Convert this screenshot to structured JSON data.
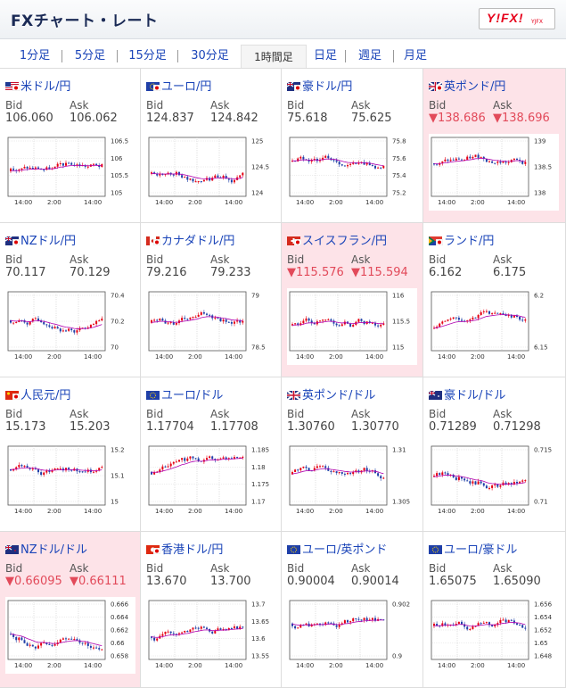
{
  "header": {
    "title": "FXチャート・レート",
    "logo_text": "Y!FX!",
    "logo_sub": "YJFX"
  },
  "tabs": [
    {
      "label": "1分足",
      "active": false
    },
    {
      "label": "5分足",
      "active": false
    },
    {
      "label": "15分足",
      "active": false
    },
    {
      "label": "30分足",
      "active": false
    },
    {
      "label": "1時間足",
      "active": true
    },
    {
      "label": "日足",
      "active": false
    },
    {
      "label": "週足",
      "active": false
    },
    {
      "label": "月足",
      "active": false
    }
  ],
  "labels": {
    "bid": "Bid",
    "ask": "Ask"
  },
  "pairs": [
    {
      "name": "米ドル/円",
      "bid": "106.060",
      "ask": "106.062",
      "down": false,
      "flag": "us",
      "ticks": [
        "106.5",
        "106",
        "105.5",
        "105"
      ],
      "xticks": [
        "14:00",
        "2:00",
        "14:00"
      ]
    },
    {
      "name": "ユーロ/円",
      "bid": "124.837",
      "ask": "124.842",
      "down": false,
      "flag": "eu",
      "ticks": [
        "125",
        "124.5",
        "124"
      ],
      "xticks": [
        "14:00",
        "2:00",
        "14:00"
      ]
    },
    {
      "name": "豪ドル/円",
      "bid": "75.618",
      "ask": "75.625",
      "down": false,
      "flag": "au",
      "ticks": [
        "75.8",
        "75.6",
        "75.4",
        "75.2"
      ],
      "xticks": [
        "14:00",
        "2:00",
        "14:00"
      ]
    },
    {
      "name": "英ポンド/円",
      "bid": "▼138.686",
      "ask": "▼138.696",
      "down": true,
      "flag": "gb",
      "ticks": [
        "139",
        "138.5",
        "138"
      ],
      "xticks": [
        "14:00",
        "2:00",
        "14:00"
      ]
    },
    {
      "name": "NZドル/円",
      "bid": "70.117",
      "ask": "70.129",
      "down": false,
      "flag": "nz",
      "ticks": [
        "70.4",
        "70.2",
        "70"
      ],
      "xticks": [
        "14:00",
        "2:00",
        "14:00"
      ]
    },
    {
      "name": "カナダドル/円",
      "bid": "79.216",
      "ask": "79.233",
      "down": false,
      "flag": "ca",
      "ticks": [
        "79",
        "78.5"
      ],
      "xticks": [
        "14:00",
        "2:00",
        "14:00"
      ]
    },
    {
      "name": "スイスフラン/円",
      "bid": "▼115.576",
      "ask": "▼115.594",
      "down": true,
      "flag": "ch",
      "ticks": [
        "116",
        "115.5",
        "115"
      ],
      "xticks": [
        "14:00",
        "2:00",
        "14:00"
      ]
    },
    {
      "name": "ランド/円",
      "bid": "6.162",
      "ask": "6.175",
      "down": false,
      "flag": "za",
      "ticks": [
        "6.2",
        "6.15"
      ],
      "xticks": [
        "14:00",
        "2:00",
        "14:00"
      ]
    },
    {
      "name": "人民元/円",
      "bid": "15.173",
      "ask": "15.203",
      "down": false,
      "flag": "cn",
      "ticks": [
        "15.2",
        "15.1",
        "15"
      ],
      "xticks": [
        "14:00",
        "2:00",
        "14:00"
      ]
    },
    {
      "name": "ユーロ/ドル",
      "bid": "1.17704",
      "ask": "1.17708",
      "down": false,
      "flag": "eu",
      "ticks": [
        "1.185",
        "1.18",
        "1.175",
        "1.17"
      ],
      "xticks": [
        "14:00",
        "2:00",
        "14:00"
      ]
    },
    {
      "name": "英ポンド/ドル",
      "bid": "1.30760",
      "ask": "1.30770",
      "down": false,
      "flag": "gb",
      "ticks": [
        "1.31",
        "1.305"
      ],
      "xticks": [
        "14:00",
        "2:00",
        "14:00"
      ]
    },
    {
      "name": "豪ドル/ドル",
      "bid": "0.71289",
      "ask": "0.71298",
      "down": false,
      "flag": "au",
      "ticks": [
        "0.715",
        "0.71"
      ],
      "xticks": [
        "14:00",
        "2:00",
        "14:00"
      ]
    },
    {
      "name": "NZドル/ドル",
      "bid": "▼0.66095",
      "ask": "▼0.66111",
      "down": true,
      "flag": "nz",
      "ticks": [
        "0.666",
        "0.664",
        "0.662",
        "0.66",
        "0.658"
      ],
      "xticks": [
        "14:00",
        "2:00",
        "14:00"
      ]
    },
    {
      "name": "香港ドル/円",
      "bid": "13.670",
      "ask": "13.700",
      "down": false,
      "flag": "hk",
      "ticks": [
        "13.7",
        "13.65",
        "13.6",
        "13.55"
      ],
      "xticks": [
        "14:00",
        "2:00",
        "14:00"
      ]
    },
    {
      "name": "ユーロ/英ポンド",
      "bid": "0.90004",
      "ask": "0.90014",
      "down": false,
      "flag": "eu",
      "ticks": [
        "0.902",
        "0.9"
      ],
      "xticks": [
        "14:00",
        "2:00",
        "14:00"
      ]
    },
    {
      "name": "ユーロ/豪ドル",
      "bid": "1.65075",
      "ask": "1.65090",
      "down": false,
      "flag": "eu",
      "ticks": [
        "1.656",
        "1.654",
        "1.652",
        "1.65",
        "1.648"
      ],
      "xticks": [
        "14:00",
        "2:00",
        "14:00"
      ]
    }
  ],
  "colors": {
    "up": "#e60012",
    "down": "#1f3fa8",
    "ma": "#b000b0",
    "accent": "#1a44b8",
    "down_bg": "#fde3e8"
  }
}
